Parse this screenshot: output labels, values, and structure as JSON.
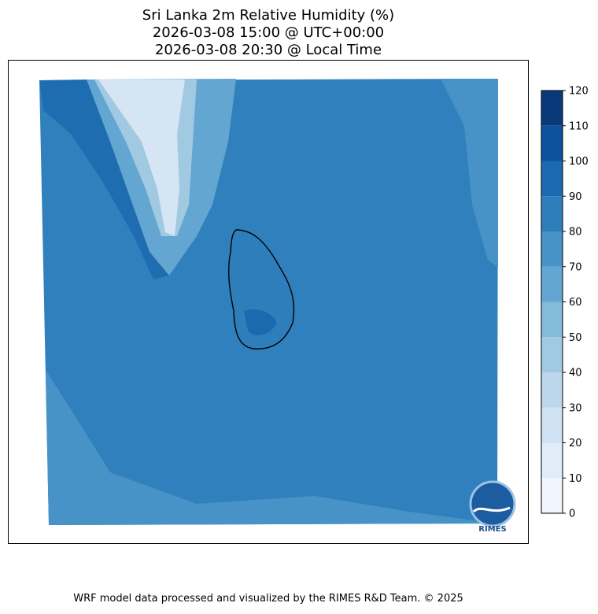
{
  "header": {
    "title": [
      "Sri Lanka 2m Relative Humidity (%)",
      "2026-03-08 15:00 @ UTC+00:00",
      "2026-03-08 20:30 @ Local Time"
    ]
  },
  "colorbar": {
    "ticks": [
      0,
      10,
      20,
      30,
      40,
      50,
      60,
      70,
      80,
      90,
      100,
      110,
      120
    ],
    "colors": [
      "#f0f6fd",
      "#e0ecf8",
      "#cfe1f2",
      "#bcd7eb",
      "#a1cae2",
      "#83bbdb",
      "#62a6d1",
      "#4792c7",
      "#2f7ebc",
      "#1b69af",
      "#0c529d",
      "#083a7a"
    ]
  },
  "logo": "RIMES",
  "footer": "WRF model data processed and visualized by the RIMES R&D Team. © 2025"
}
